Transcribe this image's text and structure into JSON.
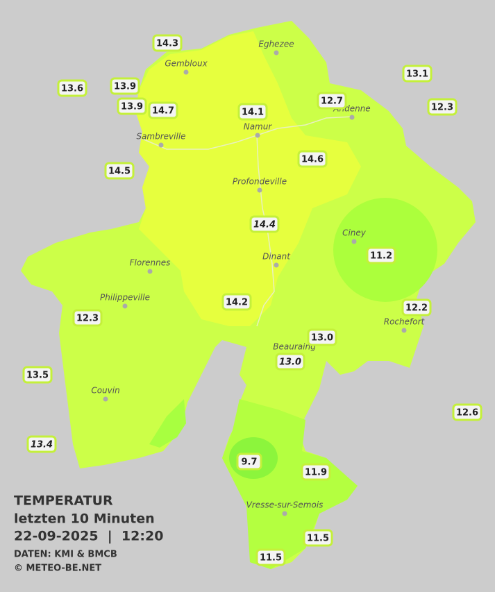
{
  "legend": {
    "title": "TEMPERATUR",
    "subtitle": "letzten 10 Minuten",
    "datetime": "22-09-2025  |  12:20",
    "source": "DATEN: KMI & BMCB",
    "credit": "© METEO-BE.NET"
  },
  "cities": [
    "Eghezee",
    "Gembloux",
    "Andenne",
    "Namur",
    "Sambreville",
    "Profondeville",
    "Ciney",
    "Dinant",
    "Florennes",
    "Philippeville",
    "Rochefort",
    "Beauraing",
    "Couvin",
    "Vresse-sur-Semois"
  ],
  "stations": [
    "14.3",
    "13.6",
    "13.9",
    "13.9",
    "14.7",
    "14.1",
    "12.7",
    "13.1",
    "12.3",
    "14.5",
    "14.6",
    "14.4",
    "11.2",
    "14.2",
    "12.2",
    "12.3",
    "13.0",
    "13.0",
    "13.5",
    "12.6",
    "13.4",
    "9.7",
    "11.9",
    "11.5",
    "11.5"
  ]
}
